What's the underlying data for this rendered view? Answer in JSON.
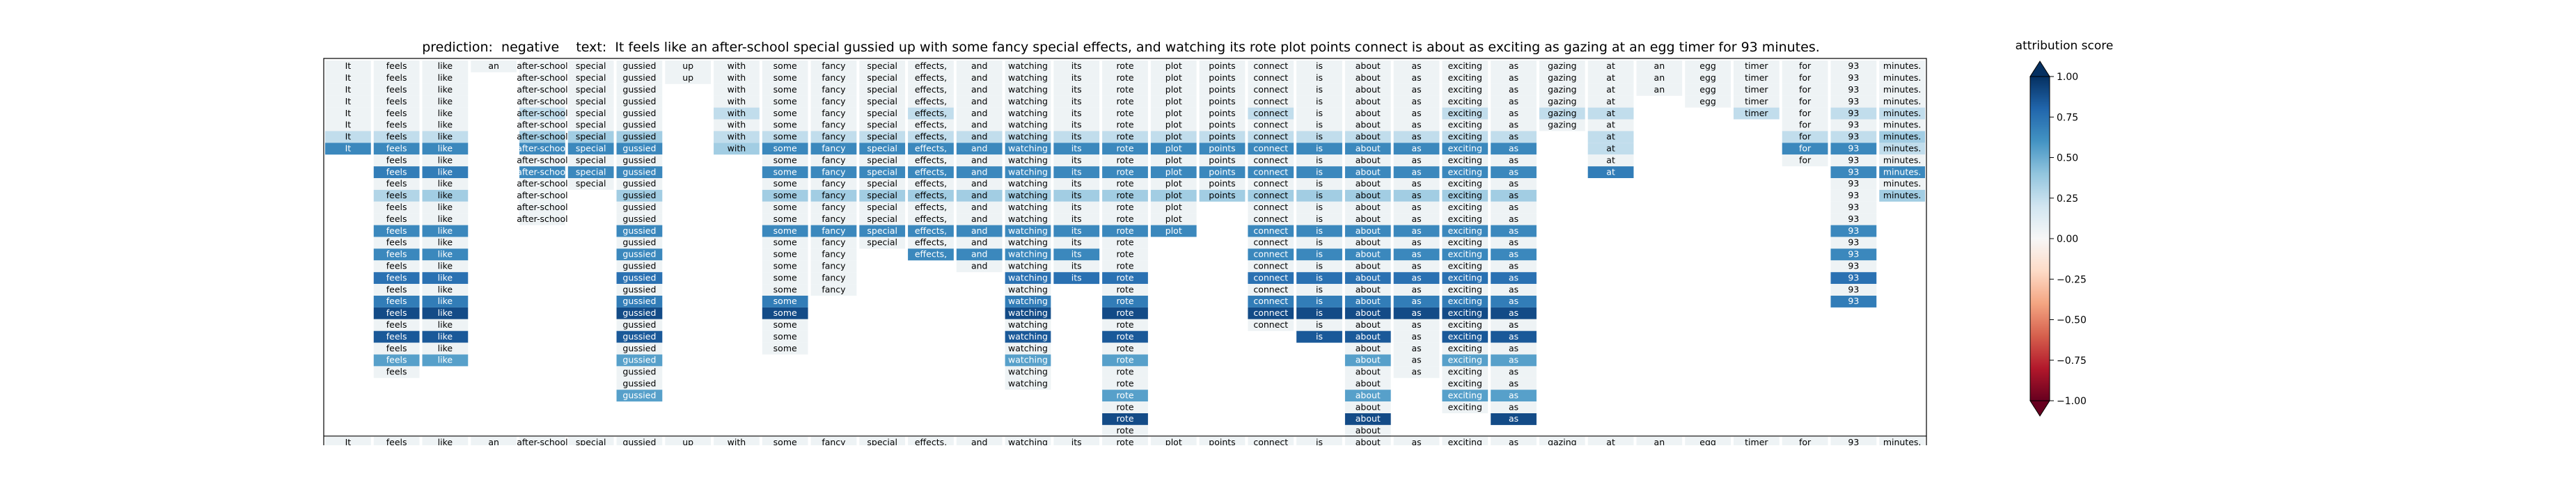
{
  "title": {
    "prediction_label": "prediction:",
    "prediction_value": "negative",
    "text_label": "text:",
    "text_value": "It feels like an after-school special gussied up with some fancy special effects, and watching its rote plot points connect is about as exciting as gazing at an egg timer for 93 minutes."
  },
  "colorbar": {
    "title": "attribution score",
    "ticks": [
      1.0,
      0.75,
      0.5,
      0.25,
      0.0,
      -0.25,
      -0.5,
      -0.75,
      -1.0
    ],
    "tick_labels": [
      "1.00",
      "0.75",
      "0.50",
      "0.25",
      "0.00",
      "−0.25",
      "−0.50",
      "−0.75",
      "−1.00"
    ],
    "colors": [
      "#67001f",
      "#b2182b",
      "#d6604d",
      "#f4a582",
      "#fddbc7",
      "#f7f7f7",
      "#d1e5f0",
      "#92c5de",
      "#4393c3",
      "#2166ac",
      "#053061"
    ]
  },
  "chart_data": {
    "type": "heatmap",
    "title": "",
    "value_range": [
      -1,
      1
    ],
    "tokens": [
      "It",
      "feels",
      "like",
      "an",
      "after-school",
      "special",
      "gussied",
      "up",
      "with",
      "some",
      "fancy",
      "special",
      "effects,",
      "and",
      "watching",
      "its",
      "rote",
      "plot",
      "points",
      "connect",
      "is",
      "about",
      "as",
      "exciting",
      "as",
      "gazing",
      "at",
      "an",
      "egg",
      "timer",
      "for",
      "93",
      "minutes."
    ],
    "rows": [
      [
        0.05,
        0.05,
        0.05,
        0.05,
        0.05,
        0.05,
        0.05,
        0.05,
        0.05,
        0.05,
        0.05,
        0.05,
        0.05,
        0.05,
        0.05,
        0.05,
        0.05,
        0.05,
        0.05,
        0.05,
        0.05,
        0.05,
        0.05,
        0.05,
        0.05,
        0.05,
        0.05,
        0.05,
        0.05,
        0.05,
        0.05,
        0.05,
        0.05
      ],
      [
        0.05,
        0.05,
        0.05,
        null,
        0.05,
        0.05,
        0.05,
        0.05,
        0.05,
        0.05,
        0.05,
        0.05,
        0.05,
        0.05,
        0.05,
        0.05,
        0.05,
        0.05,
        0.05,
        0.05,
        0.05,
        0.05,
        0.05,
        0.05,
        0.05,
        0.05,
        0.05,
        0.05,
        0.05,
        0.05,
        0.05,
        0.05,
        0.05
      ],
      [
        0.05,
        0.05,
        0.05,
        null,
        0.05,
        0.05,
        0.05,
        null,
        0.05,
        0.05,
        0.05,
        0.05,
        0.05,
        0.05,
        0.05,
        0.05,
        0.05,
        0.05,
        0.05,
        0.05,
        0.05,
        0.05,
        0.05,
        0.05,
        0.05,
        0.05,
        0.05,
        0.05,
        0.05,
        0.05,
        0.05,
        0.05,
        0.05
      ],
      [
        0.05,
        0.05,
        0.05,
        null,
        0.05,
        0.05,
        0.05,
        null,
        0.05,
        0.05,
        0.05,
        0.05,
        0.05,
        0.05,
        0.05,
        0.05,
        0.05,
        0.05,
        0.05,
        0.05,
        0.05,
        0.05,
        0.05,
        0.05,
        0.05,
        0.05,
        0.05,
        null,
        0.05,
        0.05,
        0.05,
        0.05,
        0.05
      ],
      [
        0.05,
        0.05,
        0.05,
        null,
        0.25,
        0.05,
        0.05,
        null,
        0.25,
        0.05,
        0.05,
        0.05,
        0.25,
        0.05,
        0.05,
        0.05,
        0.05,
        0.05,
        0.05,
        0.25,
        0.05,
        0.05,
        0.05,
        0.25,
        0.05,
        0.25,
        0.25,
        null,
        null,
        0.25,
        0.05,
        0.25,
        0.25
      ],
      [
        0.05,
        0.05,
        0.05,
        null,
        0.05,
        0.05,
        0.05,
        null,
        0.05,
        0.05,
        0.05,
        0.05,
        0.05,
        0.05,
        0.05,
        0.05,
        0.05,
        0.05,
        0.05,
        0.05,
        0.05,
        0.05,
        0.05,
        0.05,
        0.05,
        0.05,
        0.05,
        null,
        null,
        null,
        0.05,
        0.05,
        0.05
      ],
      [
        0.25,
        0.25,
        0.25,
        null,
        0.35,
        0.35,
        0.35,
        null,
        0.25,
        0.25,
        0.25,
        0.25,
        0.25,
        0.25,
        0.25,
        0.25,
        0.25,
        0.25,
        0.25,
        0.25,
        0.25,
        0.25,
        0.25,
        0.25,
        0.25,
        null,
        0.25,
        null,
        null,
        null,
        0.25,
        0.25,
        0.35
      ],
      [
        0.65,
        0.65,
        0.65,
        null,
        0.65,
        0.65,
        0.65,
        null,
        0.35,
        0.65,
        0.65,
        0.65,
        0.65,
        0.65,
        0.65,
        0.65,
        0.65,
        0.65,
        0.65,
        0.65,
        0.65,
        0.65,
        0.65,
        0.65,
        0.65,
        null,
        0.25,
        null,
        null,
        null,
        0.65,
        0.65,
        0.25
      ],
      [
        null,
        0.05,
        0.05,
        null,
        0.05,
        0.05,
        0.05,
        null,
        null,
        0.05,
        0.05,
        0.05,
        0.05,
        0.05,
        0.05,
        0.05,
        0.05,
        0.05,
        0.05,
        0.05,
        0.05,
        0.05,
        0.05,
        0.05,
        0.05,
        null,
        0.05,
        null,
        null,
        null,
        0.05,
        0.05,
        0.05
      ],
      [
        null,
        0.7,
        0.7,
        null,
        0.65,
        0.65,
        0.65,
        null,
        null,
        0.65,
        0.65,
        0.65,
        0.65,
        0.65,
        0.65,
        0.65,
        0.65,
        0.65,
        0.65,
        0.65,
        0.65,
        0.65,
        0.65,
        0.65,
        0.65,
        null,
        0.7,
        null,
        null,
        null,
        null,
        0.65,
        0.65
      ],
      [
        null,
        0.05,
        0.05,
        null,
        0.05,
        0.05,
        0.05,
        null,
        null,
        0.05,
        0.05,
        0.05,
        0.05,
        0.05,
        0.05,
        0.05,
        0.05,
        0.05,
        0.05,
        0.05,
        0.05,
        0.05,
        0.05,
        0.05,
        0.05,
        null,
        null,
        null,
        null,
        null,
        null,
        0.05,
        0.05
      ],
      [
        null,
        0.3,
        0.35,
        null,
        0.05,
        null,
        0.35,
        null,
        null,
        0.35,
        0.35,
        0.35,
        0.35,
        0.35,
        0.35,
        0.35,
        0.35,
        0.35,
        0.35,
        0.35,
        0.35,
        0.35,
        0.35,
        0.35,
        0.35,
        null,
        null,
        null,
        null,
        null,
        null,
        0.05,
        0.35
      ],
      [
        null,
        0.05,
        0.05,
        null,
        0.05,
        null,
        0.05,
        null,
        null,
        0.05,
        0.05,
        0.05,
        0.05,
        0.05,
        0.05,
        0.05,
        0.05,
        0.05,
        null,
        0.05,
        0.05,
        0.05,
        0.05,
        0.05,
        0.05,
        null,
        null,
        null,
        null,
        null,
        null,
        0.05,
        null
      ],
      [
        null,
        0.05,
        0.05,
        null,
        0.05,
        null,
        0.05,
        null,
        null,
        0.05,
        0.05,
        0.05,
        0.05,
        0.05,
        0.05,
        0.05,
        0.05,
        0.05,
        null,
        0.05,
        0.05,
        0.05,
        0.05,
        0.05,
        0.05,
        null,
        null,
        null,
        null,
        null,
        null,
        0.05,
        null
      ],
      [
        null,
        0.65,
        0.65,
        null,
        null,
        null,
        0.65,
        null,
        null,
        0.65,
        0.65,
        0.65,
        0.65,
        0.65,
        0.65,
        0.65,
        0.65,
        0.65,
        null,
        0.65,
        0.65,
        0.65,
        0.65,
        0.65,
        0.65,
        null,
        null,
        null,
        null,
        null,
        null,
        0.65,
        null
      ],
      [
        null,
        0.05,
        0.05,
        null,
        null,
        null,
        0.05,
        null,
        null,
        0.05,
        0.05,
        0.05,
        0.05,
        0.05,
        0.05,
        0.05,
        0.05,
        null,
        null,
        0.05,
        0.05,
        0.05,
        0.05,
        0.05,
        0.05,
        null,
        null,
        null,
        null,
        null,
        null,
        0.05,
        null
      ],
      [
        null,
        0.65,
        0.65,
        null,
        null,
        null,
        0.65,
        null,
        null,
        0.05,
        0.05,
        null,
        0.65,
        0.65,
        0.65,
        0.65,
        0.05,
        null,
        null,
        0.65,
        0.65,
        0.65,
        0.65,
        0.65,
        0.65,
        null,
        null,
        null,
        null,
        null,
        null,
        0.65,
        null
      ],
      [
        null,
        0.05,
        0.05,
        null,
        null,
        null,
        0.05,
        null,
        null,
        0.05,
        0.05,
        null,
        null,
        0.05,
        0.05,
        0.05,
        0.05,
        null,
        null,
        0.05,
        0.05,
        0.05,
        0.05,
        0.05,
        0.05,
        null,
        null,
        null,
        null,
        null,
        null,
        0.05,
        null
      ],
      [
        null,
        0.75,
        0.75,
        null,
        null,
        null,
        0.75,
        null,
        null,
        0.05,
        0.05,
        null,
        null,
        null,
        0.75,
        0.75,
        0.75,
        null,
        null,
        0.75,
        0.75,
        0.75,
        0.75,
        0.75,
        0.75,
        null,
        null,
        null,
        null,
        null,
        null,
        0.75,
        null
      ],
      [
        null,
        0.05,
        0.05,
        null,
        null,
        null,
        0.05,
        null,
        null,
        0.05,
        0.05,
        null,
        null,
        null,
        0.05,
        null,
        0.05,
        null,
        null,
        0.05,
        0.05,
        0.05,
        0.05,
        0.05,
        0.05,
        null,
        null,
        null,
        null,
        null,
        null,
        0.05,
        null
      ],
      [
        null,
        0.7,
        0.7,
        null,
        null,
        null,
        0.7,
        null,
        null,
        0.7,
        null,
        null,
        null,
        null,
        0.7,
        null,
        0.7,
        null,
        null,
        0.7,
        0.7,
        0.7,
        0.7,
        0.7,
        0.7,
        null,
        null,
        null,
        null,
        null,
        null,
        0.7,
        null
      ],
      [
        null,
        0.9,
        0.9,
        null,
        null,
        null,
        0.9,
        null,
        null,
        0.9,
        null,
        null,
        null,
        null,
        0.9,
        null,
        0.9,
        null,
        null,
        0.9,
        0.9,
        0.9,
        0.9,
        0.9,
        0.9,
        null,
        null,
        null,
        null,
        null,
        null,
        null,
        null
      ],
      [
        null,
        0.05,
        0.05,
        null,
        null,
        null,
        0.05,
        null,
        null,
        0.05,
        null,
        null,
        null,
        null,
        0.05,
        null,
        0.05,
        null,
        null,
        0.05,
        0.05,
        0.05,
        0.05,
        0.05,
        0.05,
        null,
        null,
        null,
        null,
        null,
        null,
        null,
        null
      ],
      [
        null,
        0.85,
        0.85,
        null,
        null,
        null,
        0.85,
        null,
        null,
        0.05,
        null,
        null,
        null,
        null,
        0.85,
        null,
        0.85,
        null,
        null,
        null,
        0.85,
        0.85,
        0.05,
        0.85,
        0.85,
        null,
        null,
        null,
        null,
        null,
        null,
        null,
        null
      ],
      [
        null,
        0.05,
        0.05,
        null,
        null,
        null,
        0.05,
        null,
        null,
        0.05,
        null,
        null,
        null,
        null,
        0.05,
        null,
        0.05,
        null,
        null,
        null,
        null,
        0.05,
        0.05,
        0.05,
        0.05,
        null,
        null,
        null,
        null,
        null,
        null,
        null,
        null
      ],
      [
        null,
        0.55,
        0.55,
        null,
        null,
        null,
        0.55,
        null,
        null,
        null,
        null,
        null,
        null,
        null,
        0.55,
        null,
        0.55,
        null,
        null,
        null,
        null,
        0.55,
        0.05,
        0.55,
        0.55,
        null,
        null,
        null,
        null,
        null,
        null,
        null,
        null
      ],
      [
        null,
        0.05,
        null,
        null,
        null,
        null,
        0.05,
        null,
        null,
        null,
        null,
        null,
        null,
        null,
        0.05,
        null,
        0.05,
        null,
        null,
        null,
        null,
        0.05,
        0.05,
        0.05,
        0.05,
        null,
        null,
        null,
        null,
        null,
        null,
        null,
        null
      ],
      [
        null,
        null,
        null,
        null,
        null,
        null,
        0.05,
        null,
        null,
        null,
        null,
        null,
        null,
        null,
        0.05,
        null,
        0.05,
        null,
        null,
        null,
        null,
        0.05,
        null,
        0.05,
        0.05,
        null,
        null,
        null,
        null,
        null,
        null,
        null,
        null
      ],
      [
        null,
        null,
        null,
        null,
        null,
        null,
        0.55,
        null,
        null,
        null,
        null,
        null,
        null,
        null,
        null,
        null,
        0.55,
        null,
        null,
        null,
        null,
        0.55,
        null,
        0.55,
        0.55,
        null,
        null,
        null,
        null,
        null,
        null,
        null,
        null
      ],
      [
        null,
        null,
        null,
        null,
        null,
        null,
        null,
        null,
        null,
        null,
        null,
        null,
        null,
        null,
        null,
        null,
        0.05,
        null,
        null,
        null,
        null,
        0.05,
        null,
        0.05,
        0.05,
        null,
        null,
        null,
        null,
        null,
        null,
        null,
        null
      ],
      [
        null,
        null,
        null,
        null,
        null,
        null,
        null,
        null,
        null,
        null,
        null,
        null,
        null,
        null,
        null,
        null,
        0.9,
        null,
        null,
        null,
        null,
        0.9,
        null,
        null,
        0.9,
        null,
        null,
        null,
        null,
        null,
        null,
        null,
        null
      ],
      [
        null,
        null,
        null,
        null,
        null,
        null,
        null,
        null,
        null,
        null,
        null,
        null,
        null,
        null,
        null,
        null,
        0.05,
        null,
        null,
        null,
        null,
        0.05,
        null,
        null,
        null,
        null,
        null,
        null,
        null,
        null,
        null,
        null,
        null
      ]
    ],
    "footer_tokens": [
      "It",
      "feels",
      "like",
      "an",
      "after-school",
      "special",
      "gussied",
      "up",
      "with",
      "some",
      "fancy",
      "special",
      "effects,",
      "and",
      "watching",
      "its",
      "rote",
      "plot",
      "points",
      "connect",
      "is",
      "about",
      "as",
      "exciting",
      "as",
      "gazing",
      "at",
      "an",
      "egg",
      "timer",
      "for",
      "93",
      "minutes."
    ]
  }
}
